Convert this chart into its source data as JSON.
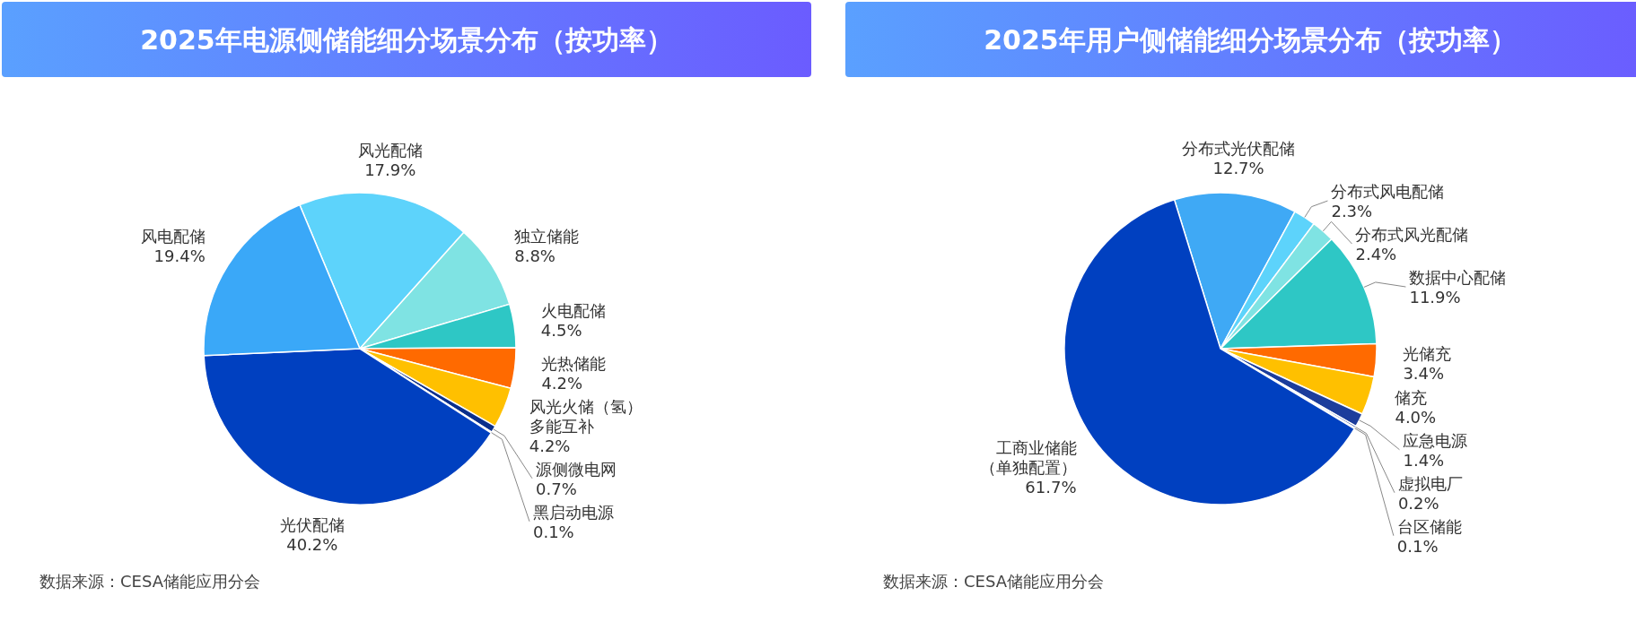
{
  "chart_data": [
    {
      "type": "pie",
      "title": "2025年电源侧储能细分场景分布（按功率）",
      "categories": [
        "风光配储",
        "独立储能",
        "火电配储",
        "光热储能",
        "风光火储（氢）多能互补",
        "源侧微电网",
        "黑启动电源",
        "光伏配储",
        "风电配储"
      ],
      "values": [
        17.9,
        8.8,
        4.5,
        4.2,
        4.2,
        0.7,
        0.1,
        40.2,
        19.4
      ],
      "value_labels": [
        "17.9%",
        "8.8%",
        "4.5%",
        "4.2%",
        "4.2%",
        "0.7%",
        "0.1%",
        "40.2%",
        "19.4%"
      ],
      "colors": [
        "#5dd3fb",
        "#7fe3e3",
        "#2ec7c5",
        "#ff6a00",
        "#ffc000",
        "#0a2f8c",
        "#1e3a8a",
        "#0040c0",
        "#3aa8f8"
      ],
      "annotations": [
        "数据来源：CESA储能应用分会"
      ]
    },
    {
      "type": "pie",
      "title": "2025年用户侧储能细分场景分布（按功率）",
      "categories": [
        "分布式光伏配储",
        "分布式风电配储",
        "分布式风光配储",
        "数据中心配储",
        "光储充",
        "储充",
        "应急电源",
        "虚拟电厂",
        "台区储能",
        "工商业储能（单独配置）"
      ],
      "values": [
        12.7,
        2.3,
        2.4,
        11.9,
        3.4,
        4.0,
        1.4,
        0.2,
        0.1,
        61.7
      ],
      "value_labels": [
        "12.7%",
        "2.3%",
        "2.4%",
        "11.9%",
        "3.4%",
        "4.0%",
        "1.4%",
        "0.2%",
        "0.1%",
        "61.7%"
      ],
      "colors": [
        "#3fa9f5",
        "#5dd3fb",
        "#7fe3e3",
        "#2ec7c5",
        "#ff6a00",
        "#ffc000",
        "#1c3d9c",
        "#0a2f8c",
        "#0b2a7a",
        "#0040c0"
      ],
      "annotations": [
        "数据来源：CESA储能应用分会"
      ]
    }
  ]
}
